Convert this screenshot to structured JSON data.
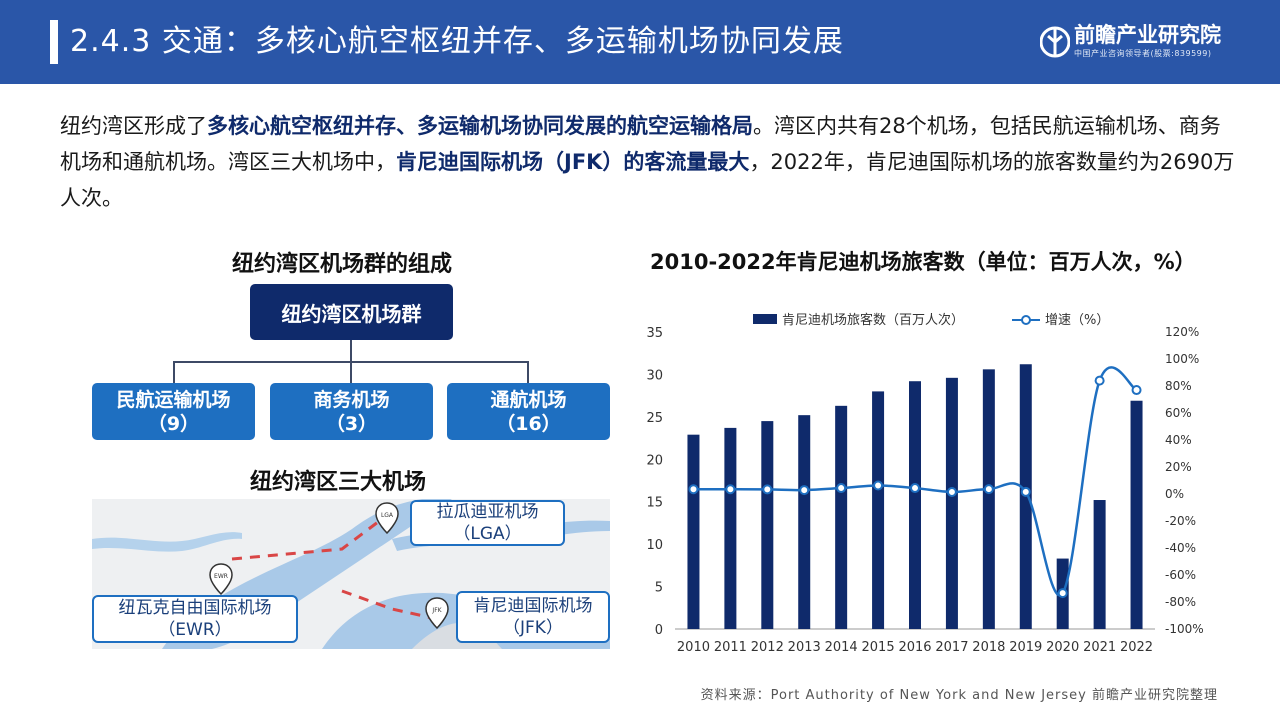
{
  "header": {
    "title": "2.4.3 交通：多核心航空枢纽并存、多运输机场协同发展",
    "logo_name": "前瞻产业研究院",
    "logo_sub": "中国产业咨询领导者(股票:839599)"
  },
  "intro": {
    "p1": "纽约湾区形成了",
    "p1_hl": "多核心航空枢纽并存、多运输机场协同发展的航空运输格局",
    "p2": "。湾区内共有28个机场，包括民航运输机场、商务机场和通航机场。湾区三大机场中，",
    "p2_hl": "肯尼迪国际机场（JFK）的客流量最大",
    "p3": "，2022年，肯尼迪国际机场的旅客数量约为2690万人次。"
  },
  "org": {
    "title": "纽约湾区机场群的组成",
    "root": "纽约湾区机场群",
    "children": [
      {
        "name": "民航运输机场",
        "count": "（9）"
      },
      {
        "name": "商务机场",
        "count": "（3）"
      },
      {
        "name": "通航机场",
        "count": "（16）"
      }
    ]
  },
  "map": {
    "title": "纽约湾区三大机场",
    "airports": [
      {
        "name": "拉瓜迪亚机场",
        "code": "（LGA）",
        "pin": "LGA"
      },
      {
        "name": "纽瓦克自由国际机场",
        "code": "（EWR）",
        "pin": "EWR"
      },
      {
        "name": "肯尼迪国际机场",
        "code": "（JFK）",
        "pin": "JFK"
      }
    ]
  },
  "chart_data": {
    "type": "bar",
    "title": "2010-2022年肯尼迪机场旅客数（单位：百万人次，%）",
    "categories": [
      "2010",
      "2011",
      "2012",
      "2013",
      "2014",
      "2015",
      "2016",
      "2017",
      "2018",
      "2019",
      "2020",
      "2021",
      "2022"
    ],
    "series": [
      {
        "name": "肯尼迪机场旅客数（百万人次）",
        "type": "bar",
        "axis": "left",
        "color": "#0f2a6b",
        "values": [
          22.9,
          23.7,
          24.5,
          25.2,
          26.3,
          28.0,
          29.2,
          29.6,
          30.6,
          31.2,
          8.3,
          15.2,
          26.9
        ]
      },
      {
        "name": "增速（%）",
        "type": "line",
        "axis": "right",
        "color": "#1e6fc1",
        "values": [
          3.5,
          3.5,
          3.4,
          2.9,
          4.4,
          6.3,
          4.4,
          1.5,
          3.6,
          1.6,
          -73.4,
          84.0,
          77.0
        ]
      }
    ],
    "ylim_left": [
      0,
      35
    ],
    "yticks_left": [
      "0",
      "5",
      "10",
      "15",
      "20",
      "25",
      "30",
      "35"
    ],
    "ylim_right": [
      -100,
      120
    ],
    "yticks_right": [
      "-100%",
      "-80%",
      "-60%",
      "-40%",
      "-20%",
      "0%",
      "20%",
      "40%",
      "60%",
      "80%",
      "100%",
      "120%"
    ],
    "legend_position": "top",
    "grid": false
  },
  "source": "资料来源：Port Authority of New York and New Jersey 前瞻产业研究院整理"
}
